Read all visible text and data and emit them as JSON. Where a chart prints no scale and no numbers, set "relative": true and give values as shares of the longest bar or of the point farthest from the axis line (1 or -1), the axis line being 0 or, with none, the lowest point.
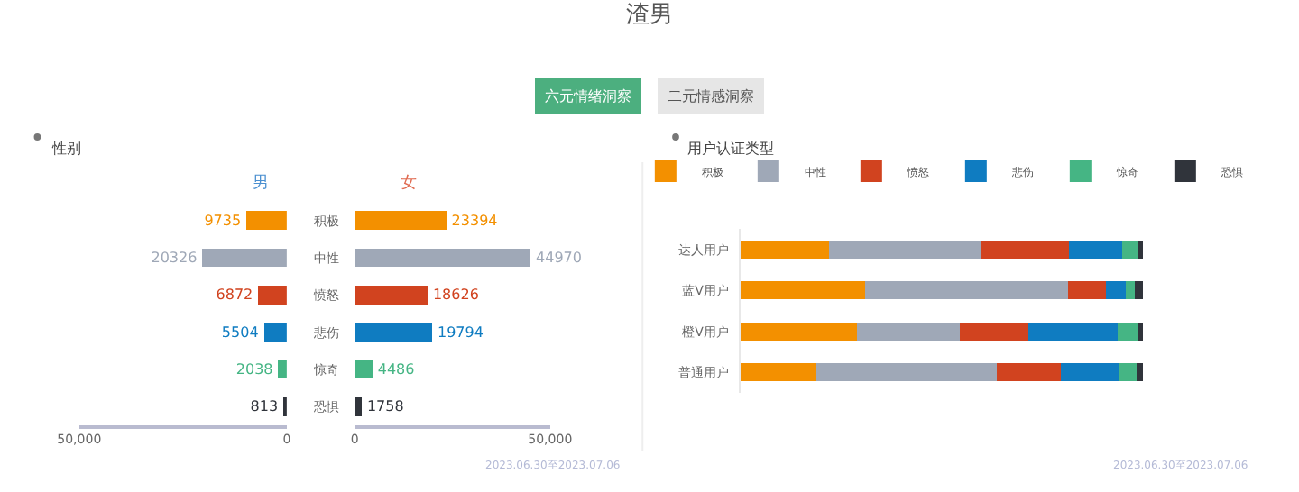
{
  "chart_data": [
    {
      "type": "other",
      "title": "渣男",
      "annotations": [
        "六元情绪洞察",
        "二元情感洞察"
      ]
    },
    {
      "type": "bar",
      "orientation": "horizontal",
      "title": "性别",
      "subtitle": "男",
      "categories": [
        "积极",
        "中性",
        "愤怒",
        "悲伤",
        "惊奇",
        "恐惧"
      ],
      "values": [
        9735,
        20326,
        6872,
        5504,
        2038,
        813
      ],
      "colors": [
        "#f39000",
        "#9fa8b7",
        "#d1431f",
        "#0f7cc1",
        "#45b584",
        "#30343b"
      ],
      "xlim": [
        50000,
        0
      ],
      "xticks": [
        {
          "value": 50000,
          "label": "50,000"
        },
        0
      ],
      "data_labels": true
    },
    {
      "type": "bar",
      "orientation": "horizontal",
      "subtitle": "女",
      "categories": [
        null,
        null,
        null,
        null,
        null,
        null
      ],
      "values": [
        23394,
        44970,
        18626,
        19794,
        4486,
        1758
      ],
      "colors": [
        "#f39000",
        "#9fa8b7",
        "#d1431f",
        "#0f7cc1",
        "#45b584",
        "#30343b"
      ],
      "xlim": [
        0,
        50000
      ],
      "xticks": [
        0,
        {
          "value": 50000,
          "label": "50,000"
        }
      ],
      "data_labels": true,
      "tick_labels": "x",
      "annotations": [
        "2023.06.30至2023.07.06"
      ]
    },
    {
      "type": "bar",
      "orientation": "horizontal",
      "stacked": true,
      "relative": true,
      "title": "用户认证类型",
      "categories": [
        "达人用户",
        "蓝V用户",
        "橙V用户",
        "普通用户"
      ],
      "series": [
        {
          "name": "积极",
          "color": "#f39000",
          "values": [
            0.22,
            0.31,
            0.289,
            0.19
          ]
        },
        {
          "name": "中性",
          "color": "#9fa8b7",
          "values": [
            0.379,
            0.504,
            0.256,
            0.448
          ]
        },
        {
          "name": "愤怒",
          "color": "#d1431f",
          "values": [
            0.218,
            0.095,
            0.171,
            0.158
          ]
        },
        {
          "name": "悲伤",
          "color": "#0f7cc1",
          "values": [
            0.132,
            0.049,
            0.221,
            0.146
          ]
        },
        {
          "name": "惊奇",
          "color": "#45b584",
          "values": [
            0.039,
            0.022,
            0.051,
            0.042
          ]
        },
        {
          "name": "恐惧",
          "color": "#30343b",
          "values": [
            0.012,
            0.02,
            0.012,
            0.016
          ]
        }
      ],
      "legend": "top",
      "annotations": [
        "2023.06.30至2023.07.06"
      ]
    }
  ]
}
